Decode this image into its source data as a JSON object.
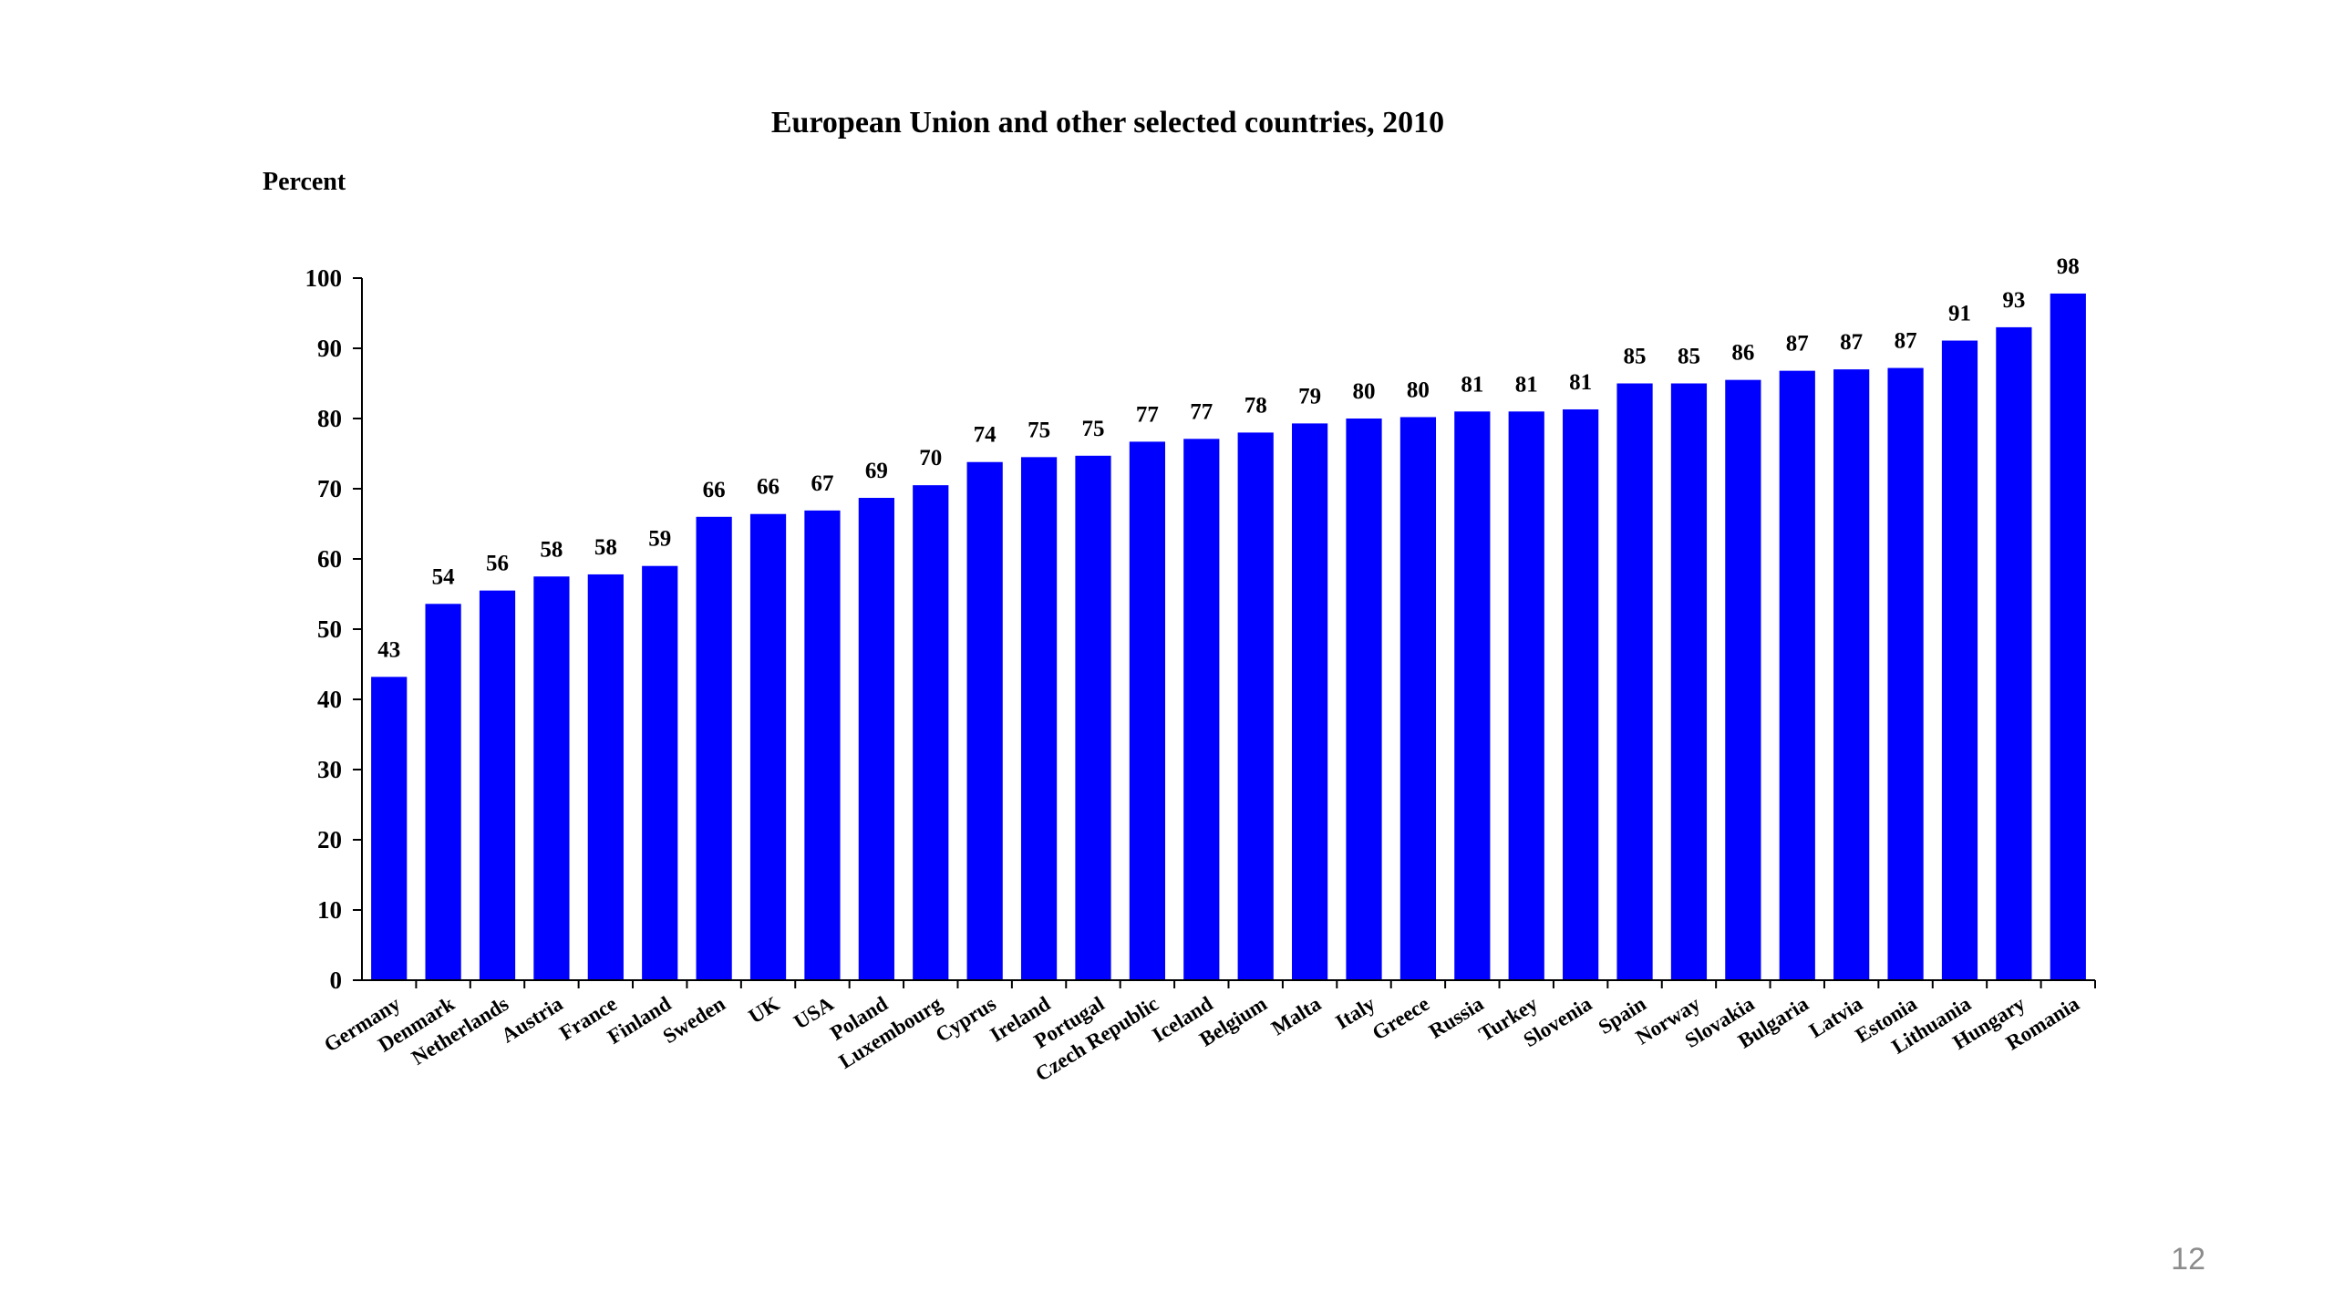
{
  "slide": {
    "page_number": "12"
  },
  "chart_data": {
    "type": "bar",
    "title": "European Union and other selected countries, 2010",
    "ylabel": "Percent",
    "xlabel": "",
    "ylim": [
      0,
      100
    ],
    "yticks": [
      0,
      10,
      20,
      30,
      40,
      50,
      60,
      70,
      80,
      90,
      100
    ],
    "grid": false,
    "legend": "none",
    "bar_color": "#0000ff",
    "categories": [
      "Germany",
      "Denmark",
      "Netherlands",
      "Austria",
      "France",
      "Finland",
      "Sweden",
      "UK",
      "USA",
      "Poland",
      "Luxembourg",
      "Cyprus",
      "Ireland",
      "Portugal",
      "Czech Republic",
      "Iceland",
      "Belgium",
      "Malta",
      "Italy",
      "Greece",
      "Russia",
      "Turkey",
      "Slovenia",
      "Spain",
      "Norway",
      "Slovakia",
      "Bulgaria",
      "Latvia",
      "Estonia",
      "Lithuania",
      "Hungary",
      "Romania"
    ],
    "values": [
      43.2,
      53.6,
      55.5,
      57.5,
      57.8,
      59.0,
      66.0,
      66.4,
      66.9,
      68.7,
      70.5,
      73.8,
      74.5,
      74.7,
      76.7,
      77.1,
      78.0,
      79.3,
      80.0,
      80.2,
      81.0,
      81.0,
      81.3,
      85.0,
      85.0,
      85.5,
      86.8,
      87.0,
      87.2,
      91.1,
      93.0,
      97.8
    ],
    "data_labels": [
      "43",
      "54",
      "56",
      "58",
      "58",
      "59",
      "66",
      "66",
      "67",
      "69",
      "70",
      "74",
      "75",
      "75",
      "77",
      "77",
      "78",
      "79",
      "80",
      "80",
      "81",
      "81",
      "81",
      "85",
      "85",
      "86",
      "87",
      "87",
      "87",
      "91",
      "93",
      "98"
    ]
  }
}
